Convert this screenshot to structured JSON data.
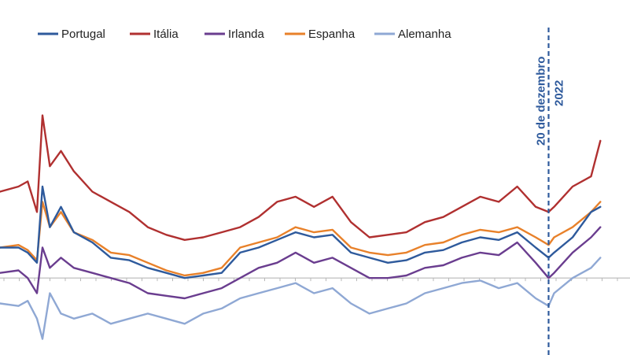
{
  "chart_data": {
    "type": "line",
    "title": "",
    "xlabel": "",
    "ylabel": "",
    "x": [
      2020.0,
      2020.1,
      2020.15,
      2020.2,
      2020.23,
      2020.27,
      2020.33,
      2020.4,
      2020.5,
      2020.6,
      2020.7,
      2020.8,
      2020.9,
      2021.0,
      2021.1,
      2021.2,
      2021.3,
      2021.4,
      2021.5,
      2021.6,
      2021.7,
      2021.8,
      2021.9,
      2022.0,
      2022.1,
      2022.2,
      2022.3,
      2022.4,
      2022.5,
      2022.6,
      2022.7,
      2022.8,
      2022.9,
      2022.97,
      2023.0,
      2023.1,
      2023.2,
      2023.25
    ],
    "xlim": [
      2020.0,
      2023.3
    ],
    "ylim": [
      -1.5,
      4.0
    ],
    "grid": false,
    "zero_line": true,
    "legend_position": "top",
    "series": [
      {
        "name": "Portugal",
        "color": "#2e5a9c",
        "values": [
          0.6,
          0.6,
          0.5,
          0.3,
          1.8,
          1.0,
          1.4,
          0.9,
          0.7,
          0.4,
          0.35,
          0.2,
          0.1,
          0.0,
          0.05,
          0.1,
          0.5,
          0.6,
          0.75,
          0.9,
          0.8,
          0.85,
          0.5,
          0.4,
          0.3,
          0.35,
          0.5,
          0.55,
          0.7,
          0.8,
          0.75,
          0.9,
          0.6,
          0.4,
          0.5,
          0.8,
          1.3,
          1.4
        ]
      },
      {
        "name": "Itália",
        "color": "#b03030",
        "values": [
          1.7,
          1.8,
          1.9,
          1.3,
          3.2,
          2.2,
          2.5,
          2.1,
          1.7,
          1.5,
          1.3,
          1.0,
          0.85,
          0.75,
          0.8,
          0.9,
          1.0,
          1.2,
          1.5,
          1.6,
          1.4,
          1.6,
          1.1,
          0.8,
          0.85,
          0.9,
          1.1,
          1.2,
          1.4,
          1.6,
          1.5,
          1.8,
          1.4,
          1.3,
          1.4,
          1.8,
          2.0,
          2.7
        ]
      },
      {
        "name": "Irlanda",
        "color": "#6a3d8f",
        "values": [
          0.1,
          0.15,
          0.0,
          -0.3,
          0.6,
          0.2,
          0.4,
          0.2,
          0.1,
          0.0,
          -0.1,
          -0.3,
          -0.35,
          -0.4,
          -0.3,
          -0.2,
          0.0,
          0.2,
          0.3,
          0.5,
          0.3,
          0.4,
          0.2,
          0.0,
          0.0,
          0.05,
          0.2,
          0.25,
          0.4,
          0.5,
          0.45,
          0.7,
          0.3,
          0.0,
          0.1,
          0.5,
          0.8,
          1.0
        ]
      },
      {
        "name": "Espanha",
        "color": "#e8812a",
        "values": [
          0.6,
          0.65,
          0.55,
          0.35,
          1.5,
          1.0,
          1.3,
          0.9,
          0.75,
          0.5,
          0.45,
          0.3,
          0.15,
          0.05,
          0.1,
          0.2,
          0.6,
          0.7,
          0.8,
          1.0,
          0.9,
          0.95,
          0.6,
          0.5,
          0.45,
          0.5,
          0.65,
          0.7,
          0.85,
          0.95,
          0.9,
          1.0,
          0.8,
          0.65,
          0.8,
          1.0,
          1.3,
          1.5
        ]
      },
      {
        "name": "Alemanha",
        "color": "#8fa8d4",
        "values": [
          -0.5,
          -0.55,
          -0.45,
          -0.8,
          -1.2,
          -0.3,
          -0.7,
          -0.8,
          -0.7,
          -0.9,
          -0.8,
          -0.7,
          -0.8,
          -0.9,
          -0.7,
          -0.6,
          -0.4,
          -0.3,
          -0.2,
          -0.1,
          -0.3,
          -0.2,
          -0.5,
          -0.7,
          -0.6,
          -0.5,
          -0.3,
          -0.2,
          -0.1,
          -0.05,
          -0.2,
          -0.1,
          -0.4,
          -0.55,
          -0.3,
          0.0,
          0.2,
          0.4
        ]
      }
    ],
    "annotation": {
      "line1": "20 de dezembro",
      "line2": "2022",
      "x": 2022.97,
      "color": "#2e5a9c"
    }
  }
}
